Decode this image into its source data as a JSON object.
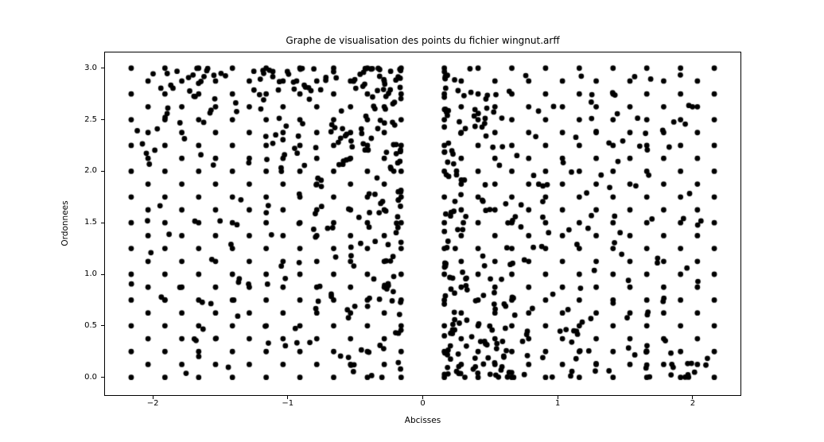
{
  "figure": {
    "background_color": "#ffffff",
    "text_color": "#000000"
  },
  "chart_data": {
    "type": "scatter",
    "title": "Graphe de visualisation des points du fichier wingnut.arff",
    "xlabel": "Abcisses",
    "ylabel": "Ordonnees",
    "xlim": [
      -2.36,
      2.36
    ],
    "ylim": [
      -0.18,
      3.16
    ],
    "xtick_values": [
      -2,
      -1,
      0,
      1,
      2
    ],
    "xtick_labels": [
      "−2",
      "−1",
      "0",
      "1",
      "2"
    ],
    "ytick_values": [
      0,
      0.5,
      1,
      1.5,
      2,
      2.5,
      3
    ],
    "ytick_labels": [
      "0.0",
      "0.5",
      "1.0",
      "1.5",
      "2.0",
      "2.5",
      "3.0"
    ],
    "grid": false,
    "legend": "none",
    "marker": {
      "shape": "circle",
      "color": "#000000",
      "radius_px": 3.4
    },
    "total_points_approx": 996,
    "points_encoding": "WingNut-style data: two mirrored clusters. Each cluster = two interleaved square lattices (0.25 spacing, second lattice offset by 0.125,0.125) covering x in [|0.16|,|2.16|], y in [0,3], plus ~285 random points generated as coord = edge + span * r^pow (seeded PRNG), so density rises toward the inner-top corner of the left cluster and the inner-bottom corner of the right cluster.",
    "clusters": [
      {
        "name": "left-cluster",
        "x_range": [
          -2.16,
          -0.16
        ],
        "y_range": [
          0,
          3
        ],
        "dense_corner": "top-right-of-cluster",
        "lattices": [
          {
            "x0": -2.16,
            "dx": 0.25,
            "nx": 9,
            "y0": 0.0,
            "dy": 0.25,
            "ny": 13
          },
          {
            "x0": -2.035,
            "dx": 0.25,
            "nx": 8,
            "y0": 0.125,
            "dy": 0.25,
            "ny": 12
          }
        ],
        "random": {
          "n": 285,
          "seed": 1337,
          "x_edge": -0.16,
          "x_span": -2.0,
          "x_pow": 1.9,
          "y_edge": 3.0,
          "y_span": -3.0,
          "y_pow": 1.6
        }
      },
      {
        "name": "right-cluster",
        "x_range": [
          0.16,
          2.16
        ],
        "y_range": [
          0,
          3
        ],
        "dense_corner": "bottom-left-of-cluster",
        "lattices": [
          {
            "x0": 0.16,
            "dx": 0.25,
            "nx": 9,
            "y0": 0.0,
            "dy": 0.25,
            "ny": 13
          },
          {
            "x0": 0.285,
            "dx": 0.25,
            "nx": 8,
            "y0": 0.125,
            "dy": 0.25,
            "ny": 12
          }
        ],
        "random": {
          "n": 285,
          "seed": 7331,
          "x_edge": 0.16,
          "x_span": 2.0,
          "x_pow": 1.9,
          "y_edge": 0.0,
          "y_span": 3.0,
          "y_pow": 1.6
        }
      }
    ]
  }
}
